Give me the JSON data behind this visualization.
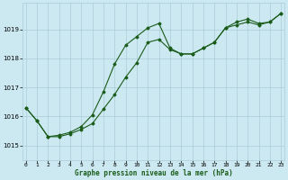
{
  "xlabel": "Graphe pression niveau de la mer (hPa)",
  "bg_color": "#cce8f0",
  "grid_color": "#aacdd8",
  "line_color": "#1a5c1a",
  "x_ticks": [
    0,
    1,
    2,
    3,
    4,
    5,
    6,
    7,
    8,
    9,
    10,
    11,
    12,
    13,
    14,
    15,
    16,
    17,
    18,
    19,
    20,
    21,
    22,
    23
  ],
  "y_ticks": [
    1015,
    1016,
    1017,
    1018,
    1019
  ],
  "ylim": [
    1014.5,
    1019.9
  ],
  "xlim": [
    -0.3,
    23.3
  ],
  "curve1_y": [
    1016.3,
    1015.85,
    1015.3,
    1015.3,
    1015.4,
    1015.55,
    1015.75,
    1016.25,
    1016.75,
    1017.35,
    1017.85,
    1018.55,
    1018.65,
    1018.3,
    1018.15,
    1018.15,
    1018.35,
    1018.55,
    1019.05,
    1019.15,
    1019.25,
    1019.15,
    1019.25,
    1019.55
  ],
  "curve2_y": [
    1016.3,
    1015.85,
    1015.3,
    1015.35,
    1015.45,
    1015.65,
    1016.05,
    1016.85,
    1017.8,
    1018.45,
    1018.75,
    1019.05,
    1019.2,
    1018.35,
    1018.15,
    1018.15,
    1018.35,
    1018.55,
    1019.05,
    1019.25,
    1019.35,
    1019.2,
    1019.25,
    1019.55
  ]
}
